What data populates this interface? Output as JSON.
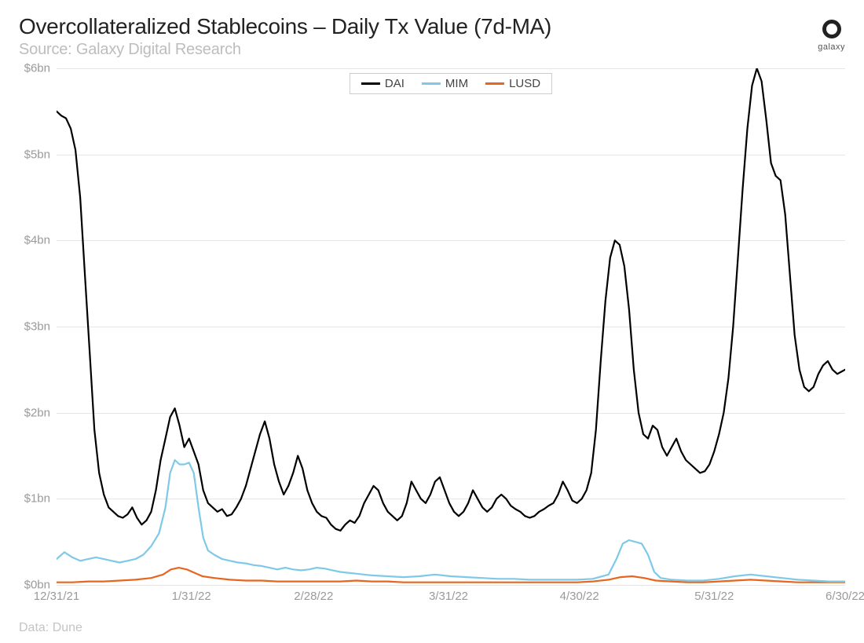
{
  "title": "Overcollateralized Stablecoins – Daily Tx Value (7d-MA)",
  "subtitle": "Source: Galaxy Digital Research",
  "footer": "Data: Dune",
  "logo_text": "galaxy",
  "chart": {
    "type": "line",
    "background_color": "#ffffff",
    "grid_color": "#e6e6e6",
    "axis_label_color": "#9a9a9a",
    "title_fontsize": 28,
    "subtitle_fontsize": 20,
    "label_fontsize": 15,
    "ylim": [
      0,
      6
    ],
    "ytick_step": 1,
    "y_labels": [
      "$0bn",
      "$1bn",
      "$2bn",
      "$3bn",
      "$4bn",
      "$5bn",
      "$6bn"
    ],
    "x_labels": [
      "12/31/21",
      "1/31/22",
      "2/28/22",
      "3/31/22",
      "4/30/22",
      "5/31/22",
      "6/30/22"
    ],
    "x_positions": [
      0,
      0.171,
      0.326,
      0.497,
      0.663,
      0.834,
      1.0
    ],
    "line_width": 2.2,
    "legend": {
      "items": [
        {
          "label": "DAI",
          "color": "#000000"
        },
        {
          "label": "MIM",
          "color": "#7fc9e8"
        },
        {
          "label": "LUSD",
          "color": "#e8651f"
        }
      ]
    },
    "series": {
      "DAI": {
        "color": "#000000",
        "points": [
          [
            0.0,
            5.5
          ],
          [
            0.006,
            5.45
          ],
          [
            0.012,
            5.42
          ],
          [
            0.018,
            5.3
          ],
          [
            0.024,
            5.05
          ],
          [
            0.03,
            4.5
          ],
          [
            0.036,
            3.6
          ],
          [
            0.042,
            2.7
          ],
          [
            0.048,
            1.8
          ],
          [
            0.054,
            1.3
          ],
          [
            0.06,
            1.05
          ],
          [
            0.066,
            0.9
          ],
          [
            0.072,
            0.85
          ],
          [
            0.078,
            0.8
          ],
          [
            0.084,
            0.78
          ],
          [
            0.09,
            0.82
          ],
          [
            0.096,
            0.9
          ],
          [
            0.102,
            0.78
          ],
          [
            0.108,
            0.7
          ],
          [
            0.114,
            0.75
          ],
          [
            0.12,
            0.85
          ],
          [
            0.126,
            1.1
          ],
          [
            0.132,
            1.45
          ],
          [
            0.138,
            1.7
          ],
          [
            0.144,
            1.95
          ],
          [
            0.15,
            2.05
          ],
          [
            0.156,
            1.85
          ],
          [
            0.162,
            1.6
          ],
          [
            0.168,
            1.7
          ],
          [
            0.174,
            1.55
          ],
          [
            0.18,
            1.4
          ],
          [
            0.186,
            1.1
          ],
          [
            0.192,
            0.95
          ],
          [
            0.198,
            0.9
          ],
          [
            0.204,
            0.85
          ],
          [
            0.21,
            0.88
          ],
          [
            0.216,
            0.8
          ],
          [
            0.222,
            0.82
          ],
          [
            0.228,
            0.9
          ],
          [
            0.234,
            1.0
          ],
          [
            0.24,
            1.15
          ],
          [
            0.246,
            1.35
          ],
          [
            0.252,
            1.55
          ],
          [
            0.258,
            1.75
          ],
          [
            0.264,
            1.9
          ],
          [
            0.27,
            1.7
          ],
          [
            0.276,
            1.4
          ],
          [
            0.282,
            1.2
          ],
          [
            0.288,
            1.05
          ],
          [
            0.294,
            1.15
          ],
          [
            0.3,
            1.3
          ],
          [
            0.306,
            1.5
          ],
          [
            0.312,
            1.35
          ],
          [
            0.318,
            1.1
          ],
          [
            0.324,
            0.95
          ],
          [
            0.33,
            0.85
          ],
          [
            0.336,
            0.8
          ],
          [
            0.342,
            0.78
          ],
          [
            0.348,
            0.7
          ],
          [
            0.354,
            0.65
          ],
          [
            0.36,
            0.63
          ],
          [
            0.366,
            0.7
          ],
          [
            0.372,
            0.75
          ],
          [
            0.378,
            0.72
          ],
          [
            0.384,
            0.8
          ],
          [
            0.39,
            0.95
          ],
          [
            0.396,
            1.05
          ],
          [
            0.402,
            1.15
          ],
          [
            0.408,
            1.1
          ],
          [
            0.414,
            0.95
          ],
          [
            0.42,
            0.85
          ],
          [
            0.426,
            0.8
          ],
          [
            0.432,
            0.75
          ],
          [
            0.438,
            0.8
          ],
          [
            0.444,
            0.95
          ],
          [
            0.45,
            1.2
          ],
          [
            0.456,
            1.1
          ],
          [
            0.462,
            1.0
          ],
          [
            0.468,
            0.95
          ],
          [
            0.474,
            1.05
          ],
          [
            0.48,
            1.2
          ],
          [
            0.486,
            1.25
          ],
          [
            0.492,
            1.1
          ],
          [
            0.498,
            0.95
          ],
          [
            0.504,
            0.85
          ],
          [
            0.51,
            0.8
          ],
          [
            0.516,
            0.85
          ],
          [
            0.522,
            0.95
          ],
          [
            0.528,
            1.1
          ],
          [
            0.534,
            1.0
          ],
          [
            0.54,
            0.9
          ],
          [
            0.546,
            0.85
          ],
          [
            0.552,
            0.9
          ],
          [
            0.558,
            1.0
          ],
          [
            0.564,
            1.05
          ],
          [
            0.57,
            1.0
          ],
          [
            0.576,
            0.92
          ],
          [
            0.582,
            0.88
          ],
          [
            0.588,
            0.85
          ],
          [
            0.594,
            0.8
          ],
          [
            0.6,
            0.78
          ],
          [
            0.606,
            0.8
          ],
          [
            0.612,
            0.85
          ],
          [
            0.618,
            0.88
          ],
          [
            0.624,
            0.92
          ],
          [
            0.63,
            0.95
          ],
          [
            0.636,
            1.05
          ],
          [
            0.642,
            1.2
          ],
          [
            0.648,
            1.1
          ],
          [
            0.654,
            0.98
          ],
          [
            0.66,
            0.95
          ],
          [
            0.666,
            1.0
          ],
          [
            0.672,
            1.1
          ],
          [
            0.678,
            1.3
          ],
          [
            0.684,
            1.8
          ],
          [
            0.69,
            2.6
          ],
          [
            0.696,
            3.3
          ],
          [
            0.702,
            3.8
          ],
          [
            0.708,
            4.0
          ],
          [
            0.714,
            3.95
          ],
          [
            0.72,
            3.7
          ],
          [
            0.726,
            3.2
          ],
          [
            0.732,
            2.5
          ],
          [
            0.738,
            2.0
          ],
          [
            0.744,
            1.75
          ],
          [
            0.75,
            1.7
          ],
          [
            0.756,
            1.85
          ],
          [
            0.762,
            1.8
          ],
          [
            0.768,
            1.6
          ],
          [
            0.774,
            1.5
          ],
          [
            0.78,
            1.6
          ],
          [
            0.786,
            1.7
          ],
          [
            0.792,
            1.55
          ],
          [
            0.798,
            1.45
          ],
          [
            0.804,
            1.4
          ],
          [
            0.81,
            1.35
          ],
          [
            0.816,
            1.3
          ],
          [
            0.822,
            1.32
          ],
          [
            0.828,
            1.4
          ],
          [
            0.834,
            1.55
          ],
          [
            0.84,
            1.75
          ],
          [
            0.846,
            2.0
          ],
          [
            0.852,
            2.4
          ],
          [
            0.858,
            3.0
          ],
          [
            0.864,
            3.8
          ],
          [
            0.87,
            4.6
          ],
          [
            0.876,
            5.3
          ],
          [
            0.882,
            5.8
          ],
          [
            0.888,
            6.0
          ],
          [
            0.894,
            5.85
          ],
          [
            0.9,
            5.4
          ],
          [
            0.906,
            4.9
          ],
          [
            0.912,
            4.75
          ],
          [
            0.918,
            4.7
          ],
          [
            0.924,
            4.3
          ],
          [
            0.93,
            3.6
          ],
          [
            0.936,
            2.9
          ],
          [
            0.942,
            2.5
          ],
          [
            0.948,
            2.3
          ],
          [
            0.954,
            2.25
          ],
          [
            0.96,
            2.3
          ],
          [
            0.966,
            2.45
          ],
          [
            0.972,
            2.55
          ],
          [
            0.978,
            2.6
          ],
          [
            0.984,
            2.5
          ],
          [
            0.99,
            2.45
          ],
          [
            0.996,
            2.48
          ],
          [
            1.0,
            2.5
          ]
        ]
      },
      "MIM": {
        "color": "#7fc9e8",
        "points": [
          [
            0.0,
            0.3
          ],
          [
            0.01,
            0.38
          ],
          [
            0.02,
            0.32
          ],
          [
            0.03,
            0.28
          ],
          [
            0.04,
            0.3
          ],
          [
            0.05,
            0.32
          ],
          [
            0.06,
            0.3
          ],
          [
            0.07,
            0.28
          ],
          [
            0.08,
            0.26
          ],
          [
            0.09,
            0.28
          ],
          [
            0.1,
            0.3
          ],
          [
            0.11,
            0.35
          ],
          [
            0.12,
            0.45
          ],
          [
            0.13,
            0.6
          ],
          [
            0.138,
            0.9
          ],
          [
            0.144,
            1.3
          ],
          [
            0.15,
            1.45
          ],
          [
            0.156,
            1.4
          ],
          [
            0.162,
            1.4
          ],
          [
            0.168,
            1.42
          ],
          [
            0.174,
            1.3
          ],
          [
            0.18,
            0.9
          ],
          [
            0.186,
            0.55
          ],
          [
            0.192,
            0.4
          ],
          [
            0.2,
            0.35
          ],
          [
            0.21,
            0.3
          ],
          [
            0.22,
            0.28
          ],
          [
            0.23,
            0.26
          ],
          [
            0.24,
            0.25
          ],
          [
            0.25,
            0.23
          ],
          [
            0.26,
            0.22
          ],
          [
            0.27,
            0.2
          ],
          [
            0.28,
            0.18
          ],
          [
            0.29,
            0.2
          ],
          [
            0.3,
            0.18
          ],
          [
            0.31,
            0.17
          ],
          [
            0.32,
            0.18
          ],
          [
            0.33,
            0.2
          ],
          [
            0.34,
            0.19
          ],
          [
            0.35,
            0.17
          ],
          [
            0.36,
            0.15
          ],
          [
            0.37,
            0.14
          ],
          [
            0.38,
            0.13
          ],
          [
            0.39,
            0.12
          ],
          [
            0.4,
            0.11
          ],
          [
            0.42,
            0.1
          ],
          [
            0.44,
            0.09
          ],
          [
            0.46,
            0.1
          ],
          [
            0.48,
            0.12
          ],
          [
            0.5,
            0.1
          ],
          [
            0.52,
            0.09
          ],
          [
            0.54,
            0.08
          ],
          [
            0.56,
            0.07
          ],
          [
            0.58,
            0.07
          ],
          [
            0.6,
            0.06
          ],
          [
            0.62,
            0.06
          ],
          [
            0.64,
            0.06
          ],
          [
            0.66,
            0.06
          ],
          [
            0.68,
            0.07
          ],
          [
            0.7,
            0.12
          ],
          [
            0.71,
            0.3
          ],
          [
            0.718,
            0.48
          ],
          [
            0.726,
            0.52
          ],
          [
            0.734,
            0.5
          ],
          [
            0.742,
            0.48
          ],
          [
            0.75,
            0.35
          ],
          [
            0.758,
            0.15
          ],
          [
            0.766,
            0.08
          ],
          [
            0.78,
            0.06
          ],
          [
            0.8,
            0.05
          ],
          [
            0.82,
            0.05
          ],
          [
            0.84,
            0.07
          ],
          [
            0.86,
            0.1
          ],
          [
            0.88,
            0.12
          ],
          [
            0.9,
            0.1
          ],
          [
            0.92,
            0.08
          ],
          [
            0.94,
            0.06
          ],
          [
            0.96,
            0.05
          ],
          [
            0.98,
            0.04
          ],
          [
            1.0,
            0.04
          ]
        ]
      },
      "LUSD": {
        "color": "#e8651f",
        "points": [
          [
            0.0,
            0.03
          ],
          [
            0.02,
            0.03
          ],
          [
            0.04,
            0.04
          ],
          [
            0.06,
            0.04
          ],
          [
            0.08,
            0.05
          ],
          [
            0.1,
            0.06
          ],
          [
            0.12,
            0.08
          ],
          [
            0.135,
            0.12
          ],
          [
            0.145,
            0.18
          ],
          [
            0.155,
            0.2
          ],
          [
            0.165,
            0.18
          ],
          [
            0.175,
            0.14
          ],
          [
            0.185,
            0.1
          ],
          [
            0.2,
            0.08
          ],
          [
            0.22,
            0.06
          ],
          [
            0.24,
            0.05
          ],
          [
            0.26,
            0.05
          ],
          [
            0.28,
            0.04
          ],
          [
            0.3,
            0.04
          ],
          [
            0.32,
            0.04
          ],
          [
            0.34,
            0.04
          ],
          [
            0.36,
            0.04
          ],
          [
            0.38,
            0.05
          ],
          [
            0.4,
            0.04
          ],
          [
            0.42,
            0.04
          ],
          [
            0.44,
            0.03
          ],
          [
            0.46,
            0.03
          ],
          [
            0.48,
            0.03
          ],
          [
            0.5,
            0.03
          ],
          [
            0.52,
            0.03
          ],
          [
            0.54,
            0.03
          ],
          [
            0.56,
            0.03
          ],
          [
            0.58,
            0.03
          ],
          [
            0.6,
            0.03
          ],
          [
            0.62,
            0.03
          ],
          [
            0.64,
            0.03
          ],
          [
            0.66,
            0.03
          ],
          [
            0.68,
            0.04
          ],
          [
            0.7,
            0.06
          ],
          [
            0.715,
            0.09
          ],
          [
            0.73,
            0.1
          ],
          [
            0.745,
            0.08
          ],
          [
            0.76,
            0.05
          ],
          [
            0.78,
            0.04
          ],
          [
            0.8,
            0.03
          ],
          [
            0.82,
            0.03
          ],
          [
            0.84,
            0.04
          ],
          [
            0.86,
            0.05
          ],
          [
            0.88,
            0.06
          ],
          [
            0.9,
            0.05
          ],
          [
            0.92,
            0.04
          ],
          [
            0.94,
            0.03
          ],
          [
            0.96,
            0.03
          ],
          [
            0.98,
            0.03
          ],
          [
            1.0,
            0.03
          ]
        ]
      }
    }
  }
}
